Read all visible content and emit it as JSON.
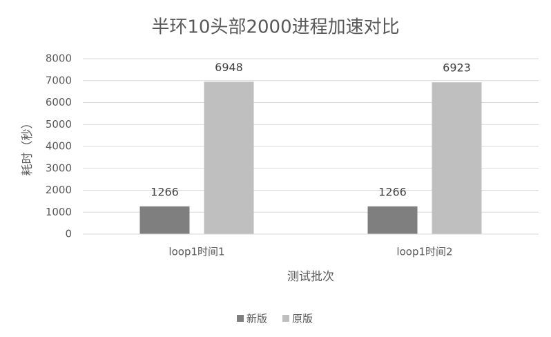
{
  "chart_data": {
    "type": "bar",
    "title": "半环10头部2000进程加速对比",
    "y_label": "耗时（秒）",
    "x_label": "测试批次",
    "categories": [
      "loop1时间1",
      "loop1时间2"
    ],
    "series": [
      {
        "name": "新版",
        "color": "#7f7f7f",
        "values": [
          1266,
          1266
        ]
      },
      {
        "name": "原版",
        "color": "#bfbfbf",
        "values": [
          6948,
          6923
        ]
      }
    ],
    "ylim": [
      0,
      8000
    ],
    "yticks": [
      0,
      1000,
      2000,
      3000,
      4000,
      5000,
      6000,
      7000,
      8000
    ],
    "grid": true,
    "legend": "bottom",
    "data_labels": true
  }
}
